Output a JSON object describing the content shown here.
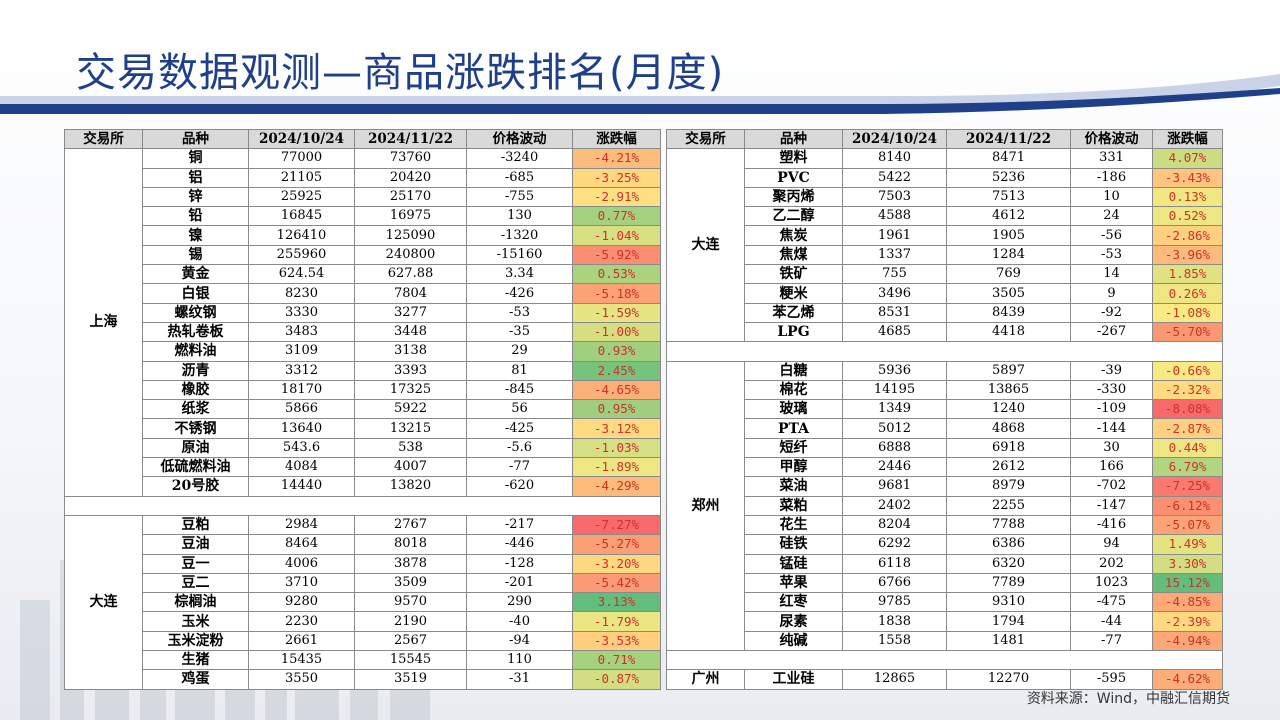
{
  "title": "交易数据观测—商品涨跌排名(月度)",
  "headers": [
    "交易所",
    "品种",
    "2024/10/24",
    "2024/11/22",
    "价格波动",
    "涨跌幅"
  ],
  "source": "资料来源：Wind，中融汇信期货",
  "left_groups": [
    {
      "exchange": "上海",
      "rows": [
        {
          "name": "铜",
          "d1": "77000",
          "d2": "73760",
          "chg": "-3240",
          "pct": "-4.21%",
          "v": -4.21
        },
        {
          "name": "铝",
          "d1": "21105",
          "d2": "20420",
          "chg": "-685",
          "pct": "-3.25%",
          "v": -3.25
        },
        {
          "name": "锌",
          "d1": "25925",
          "d2": "25170",
          "chg": "-755",
          "pct": "-2.91%",
          "v": -2.91
        },
        {
          "name": "铅",
          "d1": "16845",
          "d2": "16975",
          "chg": "130",
          "pct": "0.77%",
          "v": 0.77
        },
        {
          "name": "镍",
          "d1": "126410",
          "d2": "125090",
          "chg": "-1320",
          "pct": "-1.04%",
          "v": -1.04
        },
        {
          "name": "锡",
          "d1": "255960",
          "d2": "240800",
          "chg": "-15160",
          "pct": "-5.92%",
          "v": -5.92
        },
        {
          "name": "黄金",
          "d1": "624.54",
          "d2": "627.88",
          "chg": "3.34",
          "pct": "0.53%",
          "v": 0.53
        },
        {
          "name": "白银",
          "d1": "8230",
          "d2": "7804",
          "chg": "-426",
          "pct": "-5.18%",
          "v": -5.18
        },
        {
          "name": "螺纹钢",
          "d1": "3330",
          "d2": "3277",
          "chg": "-53",
          "pct": "-1.59%",
          "v": -1.59
        },
        {
          "name": "热轧卷板",
          "d1": "3483",
          "d2": "3448",
          "chg": "-35",
          "pct": "-1.00%",
          "v": -1.0
        },
        {
          "name": "燃料油",
          "d1": "3109",
          "d2": "3138",
          "chg": "29",
          "pct": "0.93%",
          "v": 0.93
        },
        {
          "name": "沥青",
          "d1": "3312",
          "d2": "3393",
          "chg": "81",
          "pct": "2.45%",
          "v": 2.45
        },
        {
          "name": "橡胶",
          "d1": "18170",
          "d2": "17325",
          "chg": "-845",
          "pct": "-4.65%",
          "v": -4.65
        },
        {
          "name": "纸浆",
          "d1": "5866",
          "d2": "5922",
          "chg": "56",
          "pct": "0.95%",
          "v": 0.95
        },
        {
          "name": "不锈钢",
          "d1": "13640",
          "d2": "13215",
          "chg": "-425",
          "pct": "-3.12%",
          "v": -3.12
        },
        {
          "name": "原油",
          "d1": "543.6",
          "d2": "538",
          "chg": "-5.6",
          "pct": "-1.03%",
          "v": -1.03
        },
        {
          "name": "低硫燃料油",
          "d1": "4084",
          "d2": "4007",
          "chg": "-77",
          "pct": "-1.89%",
          "v": -1.89
        },
        {
          "name": "20号胶",
          "d1": "14440",
          "d2": "13820",
          "chg": "-620",
          "pct": "-4.29%",
          "v": -4.29
        }
      ]
    },
    {
      "exchange": "大连",
      "rows": [
        {
          "name": "豆粕",
          "d1": "2984",
          "d2": "2767",
          "chg": "-217",
          "pct": "-7.27%",
          "v": -7.27
        },
        {
          "name": "豆油",
          "d1": "8464",
          "d2": "8018",
          "chg": "-446",
          "pct": "-5.27%",
          "v": -5.27
        },
        {
          "name": "豆一",
          "d1": "4006",
          "d2": "3878",
          "chg": "-128",
          "pct": "-3.20%",
          "v": -3.2
        },
        {
          "name": "豆二",
          "d1": "3710",
          "d2": "3509",
          "chg": "-201",
          "pct": "-5.42%",
          "v": -5.42
        },
        {
          "name": "棕榈油",
          "d1": "9280",
          "d2": "9570",
          "chg": "290",
          "pct": "3.13%",
          "v": 3.13
        },
        {
          "name": "玉米",
          "d1": "2230",
          "d2": "2190",
          "chg": "-40",
          "pct": "-1.79%",
          "v": -1.79
        },
        {
          "name": "玉米淀粉",
          "d1": "2661",
          "d2": "2567",
          "chg": "-94",
          "pct": "-3.53%",
          "v": -3.53
        },
        {
          "name": "生猪",
          "d1": "15435",
          "d2": "15545",
          "chg": "110",
          "pct": "0.71%",
          "v": 0.71
        },
        {
          "name": "鸡蛋",
          "d1": "3550",
          "d2": "3519",
          "chg": "-31",
          "pct": "-0.87%",
          "v": -0.87
        }
      ]
    }
  ],
  "right_groups": [
    {
      "exchange": "大连",
      "rows": [
        {
          "name": "塑料",
          "d1": "8140",
          "d2": "8471",
          "chg": "331",
          "pct": "4.07%",
          "v": 4.07
        },
        {
          "name": "PVC",
          "d1": "5422",
          "d2": "5236",
          "chg": "-186",
          "pct": "-3.43%",
          "v": -3.43
        },
        {
          "name": "聚丙烯",
          "d1": "7503",
          "d2": "7513",
          "chg": "10",
          "pct": "0.13%",
          "v": 0.13
        },
        {
          "name": "乙二醇",
          "d1": "4588",
          "d2": "4612",
          "chg": "24",
          "pct": "0.52%",
          "v": 0.52
        },
        {
          "name": "焦炭",
          "d1": "1961",
          "d2": "1905",
          "chg": "-56",
          "pct": "-2.86%",
          "v": -2.86
        },
        {
          "name": "焦煤",
          "d1": "1337",
          "d2": "1284",
          "chg": "-53",
          "pct": "-3.96%",
          "v": -3.96
        },
        {
          "name": "铁矿",
          "d1": "755",
          "d2": "769",
          "chg": "14",
          "pct": "1.85%",
          "v": 1.85
        },
        {
          "name": "粳米",
          "d1": "3496",
          "d2": "3505",
          "chg": "9",
          "pct": "0.26%",
          "v": 0.26
        },
        {
          "name": "苯乙烯",
          "d1": "8531",
          "d2": "8439",
          "chg": "-92",
          "pct": "-1.08%",
          "v": -1.08
        },
        {
          "name": "LPG",
          "d1": "4685",
          "d2": "4418",
          "chg": "-267",
          "pct": "-5.70%",
          "v": -5.7
        }
      ]
    },
    {
      "exchange": "郑州",
      "rows": [
        {
          "name": "白糖",
          "d1": "5936",
          "d2": "5897",
          "chg": "-39",
          "pct": "-0.66%",
          "v": -0.66
        },
        {
          "name": "棉花",
          "d1": "14195",
          "d2": "13865",
          "chg": "-330",
          "pct": "-2.32%",
          "v": -2.32
        },
        {
          "name": "玻璃",
          "d1": "1349",
          "d2": "1240",
          "chg": "-109",
          "pct": "-8.08%",
          "v": -8.08
        },
        {
          "name": "PTA",
          "d1": "5012",
          "d2": "4868",
          "chg": "-144",
          "pct": "-2.87%",
          "v": -2.87
        },
        {
          "name": "短纤",
          "d1": "6888",
          "d2": "6918",
          "chg": "30",
          "pct": "0.44%",
          "v": 0.44
        },
        {
          "name": "甲醇",
          "d1": "2446",
          "d2": "2612",
          "chg": "166",
          "pct": "6.79%",
          "v": 6.79
        },
        {
          "name": "菜油",
          "d1": "9681",
          "d2": "8979",
          "chg": "-702",
          "pct": "-7.25%",
          "v": -7.25
        },
        {
          "name": "菜粕",
          "d1": "2402",
          "d2": "2255",
          "chg": "-147",
          "pct": "-6.12%",
          "v": -6.12
        },
        {
          "name": "花生",
          "d1": "8204",
          "d2": "7788",
          "chg": "-416",
          "pct": "-5.07%",
          "v": -5.07
        },
        {
          "name": "硅铁",
          "d1": "6292",
          "d2": "6386",
          "chg": "94",
          "pct": "1.49%",
          "v": 1.49
        },
        {
          "name": "锰硅",
          "d1": "6118",
          "d2": "6320",
          "chg": "202",
          "pct": "3.30%",
          "v": 3.3
        },
        {
          "name": "苹果",
          "d1": "6766",
          "d2": "7789",
          "chg": "1023",
          "pct": "15.12%",
          "v": 15.12
        },
        {
          "name": "红枣",
          "d1": "9785",
          "d2": "9310",
          "chg": "-475",
          "pct": "-4.85%",
          "v": -4.85
        },
        {
          "name": "尿素",
          "d1": "1838",
          "d2": "1794",
          "chg": "-44",
          "pct": "-2.39%",
          "v": -2.39
        },
        {
          "name": "纯碱",
          "d1": "1558",
          "d2": "1481",
          "chg": "-77",
          "pct": "-4.94%",
          "v": -4.94
        }
      ]
    },
    {
      "exchange": "广州",
      "rows": [
        {
          "name": "工业硅",
          "d1": "12865",
          "d2": "12270",
          "chg": "-595",
          "pct": "-4.62%",
          "v": -4.62
        }
      ]
    }
  ],
  "colors": {
    "title": "#1f3f8a",
    "band_dark": "#1f3f8a",
    "band_light": "#c9d2e6",
    "pct_text": "#d0302b",
    "scale_low": "#f8696b",
    "scale_mid": "#ffeb84",
    "scale_high": "#63be7b"
  }
}
